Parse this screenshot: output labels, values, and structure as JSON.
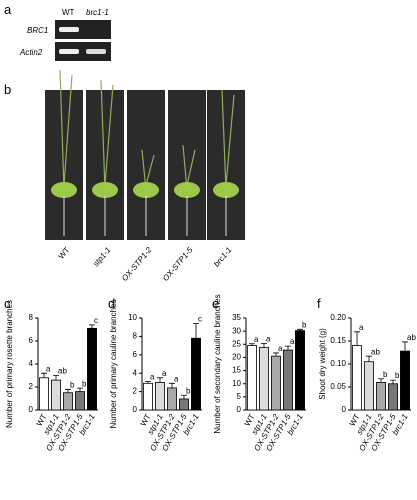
{
  "figure": {
    "panels": [
      "a",
      "b",
      "c",
      "d",
      "e",
      "f"
    ],
    "gel": {
      "lanes": [
        "WT",
        "brc1-1"
      ],
      "genes": [
        "BRC1",
        "Actin2"
      ]
    },
    "photos": {
      "labels": [
        "WT",
        "stp1-1",
        "OX-STP1-2",
        "OX-STP1-5",
        "brc1-1"
      ]
    }
  },
  "chart_data": [
    {
      "type": "bar",
      "y_label": "Number of primary rosette branches",
      "categories": [
        "WT",
        "stp1-1",
        "OX-STP1-2",
        "OX-STP1-5",
        "brc1-1"
      ],
      "values": [
        2.8,
        2.6,
        1.5,
        1.6,
        7.1
      ],
      "errors": [
        0.4,
        0.4,
        0.3,
        0.3,
        0.3
      ],
      "annotations": [
        "a",
        "ab",
        "b",
        "b",
        "c"
      ],
      "colors": [
        "#ffffff",
        "#dcdcdc",
        "#a9a9a9",
        "#777777",
        "#000000"
      ],
      "ylim": [
        0,
        8
      ],
      "yticks": [
        0,
        2,
        4,
        6,
        8
      ]
    },
    {
      "type": "bar",
      "y_label": "Number of primary cauline branches",
      "categories": [
        "WT",
        "stp1-1",
        "OX-STP1-2",
        "OX-STP1-5",
        "brc1-1"
      ],
      "values": [
        2.9,
        3.0,
        2.4,
        1.2,
        7.8
      ],
      "errors": [
        0.2,
        0.5,
        0.5,
        0.4,
        1.6
      ],
      "annotations": [
        "a",
        "a",
        "a",
        "b",
        "c"
      ],
      "colors": [
        "#ffffff",
        "#dcdcdc",
        "#a9a9a9",
        "#777777",
        "#000000"
      ],
      "ylim": [
        0,
        10
      ],
      "yticks": [
        0,
        2,
        4,
        6,
        8,
        10
      ]
    },
    {
      "type": "bar",
      "y_label": "Number of secondary cauline branches",
      "categories": [
        "WT",
        "stp1-1",
        "OX-STP1-2",
        "OX-STP1-5",
        "brc1-1"
      ],
      "values": [
        24.5,
        23.8,
        20.5,
        22.8,
        30.2
      ],
      "errors": [
        0.7,
        1.5,
        1.2,
        1.5,
        0.5
      ],
      "annotations": [
        "a",
        "a",
        "a",
        "a",
        "b"
      ],
      "colors": [
        "#ffffff",
        "#dcdcdc",
        "#a9a9a9",
        "#777777",
        "#000000"
      ],
      "ylim": [
        0,
        35
      ],
      "yticks": [
        0,
        5,
        10,
        15,
        20,
        25,
        30,
        35
      ]
    },
    {
      "type": "bar",
      "y_label": "Shoot dry weight (g)",
      "categories": [
        "WT",
        "stp1-1",
        "OX-STP1-2",
        "OX-STP1-5",
        "brc1-1"
      ],
      "values": [
        0.14,
        0.105,
        0.06,
        0.057,
        0.128
      ],
      "errors": [
        0.03,
        0.012,
        0.008,
        0.008,
        0.02
      ],
      "annotations": [
        "a",
        "ab",
        "b",
        "b",
        "ab"
      ],
      "colors": [
        "#ffffff",
        "#dcdcdc",
        "#a9a9a9",
        "#777777",
        "#000000"
      ],
      "ylim": [
        0,
        0.2
      ],
      "yticks": [
        0,
        0.05,
        {
          "value": 0.1,
          "label": "0.10"
        },
        0.15,
        {
          "value": 0.2,
          "label": "0.20"
        }
      ]
    }
  ]
}
